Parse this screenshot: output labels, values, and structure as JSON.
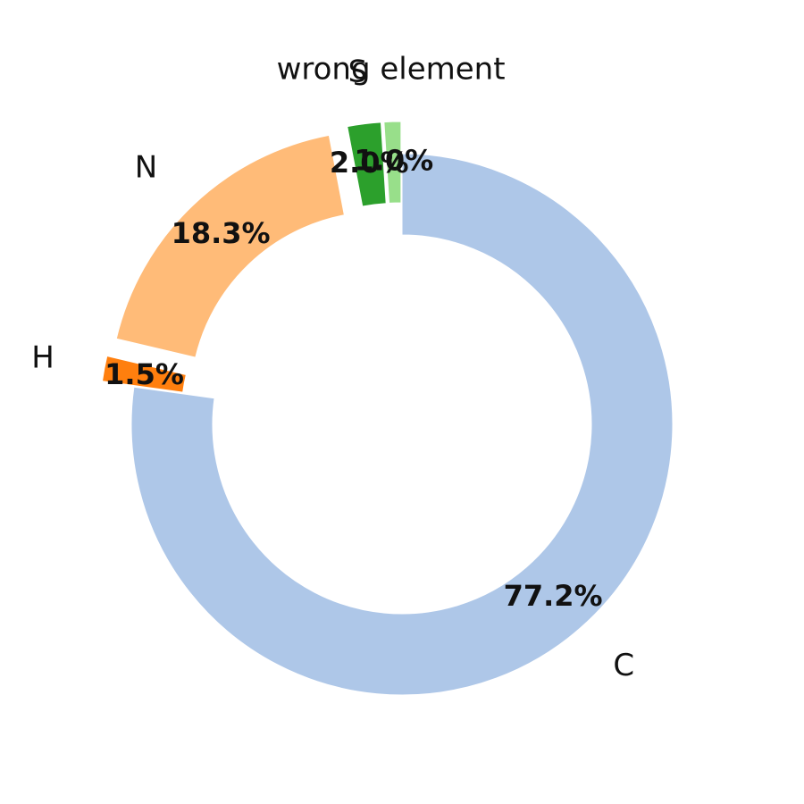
{
  "chart_data": {
    "type": "pie",
    "variant": "donut",
    "direction": "clockwise",
    "start": "top",
    "slices": [
      {
        "label": "C",
        "value": 77.2,
        "value_label": "77.2%",
        "color": "#aec7e8",
        "exploded": false
      },
      {
        "label": "H",
        "value": 1.5,
        "value_label": "1.5%",
        "color": "#ff7f0e",
        "exploded": true
      },
      {
        "label": "N",
        "value": 18.3,
        "value_label": "18.3%",
        "color": "#ffbb78",
        "exploded": true
      },
      {
        "label": "S",
        "value": 2.0,
        "value_label": "2.0%",
        "color": "#2ca02c",
        "exploded": true
      },
      {
        "label": "wrong element",
        "value": 1.0,
        "value_label": "1.0%",
        "color": "#98df8a",
        "exploded": true
      }
    ]
  }
}
